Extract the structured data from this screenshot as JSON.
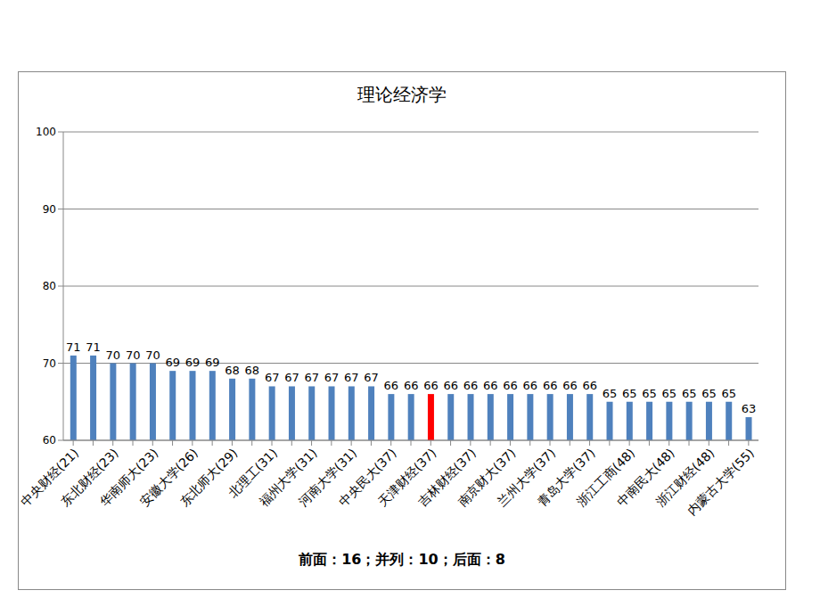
{
  "chart_data": {
    "type": "bar",
    "title": "理论经济学",
    "xlabel": "前面：16；并列：10；后面：8",
    "categories": [
      "中央财经(21)",
      null,
      "东北财经(23)",
      null,
      "华南师大(23)",
      null,
      "安徽大学(26)",
      null,
      "东北师大(29)",
      null,
      "北理工(31)",
      null,
      "福州大学(31)",
      null,
      "河南大学(31)",
      null,
      "中央民大(37)",
      null,
      "天津财经(37)",
      null,
      "吉林财经(37)",
      null,
      "南京财大(37)",
      null,
      "兰州大学(37)",
      null,
      "青岛大学(37)",
      null,
      "浙江工商(48)",
      null,
      "中南民大(48)",
      null,
      "浙江财经(48)",
      null,
      "内蒙古大学(55)"
    ],
    "values": [
      71,
      71,
      70,
      70,
      70,
      69,
      69,
      69,
      68,
      68,
      67,
      67,
      67,
      67,
      67,
      67,
      66,
      66,
      66,
      66,
      66,
      66,
      66,
      66,
      66,
      66,
      66,
      65,
      65,
      65,
      65,
      65,
      65,
      65,
      63
    ],
    "colors": [
      "#4f81bd",
      "#4f81bd",
      "#4f81bd",
      "#4f81bd",
      "#4f81bd",
      "#4f81bd",
      "#4f81bd",
      "#4f81bd",
      "#4f81bd",
      "#4f81bd",
      "#4f81bd",
      "#4f81bd",
      "#4f81bd",
      "#4f81bd",
      "#4f81bd",
      "#4f81bd",
      "#4f81bd",
      "#4f81bd",
      "#ff0000",
      "#4f81bd",
      "#4f81bd",
      "#4f81bd",
      "#4f81bd",
      "#4f81bd",
      "#4f81bd",
      "#4f81bd",
      "#4f81bd",
      "#4f81bd",
      "#4f81bd",
      "#4f81bd",
      "#4f81bd",
      "#4f81bd",
      "#4f81bd",
      "#4f81bd",
      "#4f81bd"
    ],
    "ylim": [
      60,
      100
    ],
    "yticks": [
      60,
      70,
      80,
      90,
      100
    ],
    "grid": true,
    "data_labels": true
  }
}
